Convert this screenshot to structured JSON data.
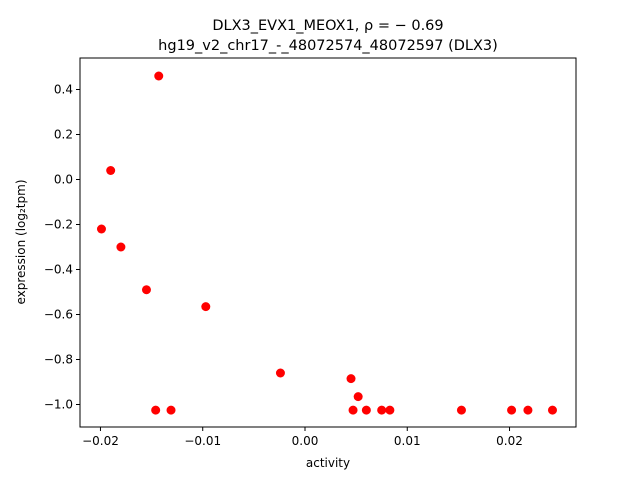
{
  "chart_data": {
    "type": "scatter",
    "title_line1": "DLX3_EVX1_MEOX1, ρ = − 0.69",
    "title_line2": "hg19_v2_chr17_-_48072574_48072597 (DLX3)",
    "xlabel": "activity",
    "ylabel": "expression (log₂tpm)",
    "xlim": [
      -0.022,
      0.0265
    ],
    "ylim": [
      -1.1,
      0.54
    ],
    "xticks": [
      -0.02,
      -0.01,
      0.0,
      0.01,
      0.02
    ],
    "xtick_labels": [
      "−0.02",
      "−0.01",
      "0.00",
      "0.01",
      "0.02"
    ],
    "yticks": [
      -1.0,
      -0.8,
      -0.6,
      -0.4,
      -0.2,
      0.0,
      0.2,
      0.4
    ],
    "ytick_labels": [
      "−1.0",
      "−0.8",
      "−0.6",
      "−0.4",
      "−0.2",
      "0.0",
      "0.2",
      "0.4"
    ],
    "marker_color": "#ff0000",
    "points": [
      {
        "x": -0.0143,
        "y": 0.46
      },
      {
        "x": -0.019,
        "y": 0.04
      },
      {
        "x": -0.0199,
        "y": -0.22
      },
      {
        "x": -0.018,
        "y": -0.3
      },
      {
        "x": -0.0155,
        "y": -0.49
      },
      {
        "x": -0.0097,
        "y": -0.565
      },
      {
        "x": -0.0024,
        "y": -0.86
      },
      {
        "x": 0.0045,
        "y": -0.885
      },
      {
        "x": 0.0052,
        "y": -0.965
      },
      {
        "x": -0.0146,
        "y": -1.025
      },
      {
        "x": -0.0131,
        "y": -1.025
      },
      {
        "x": 0.0047,
        "y": -1.025
      },
      {
        "x": 0.006,
        "y": -1.025
      },
      {
        "x": 0.0075,
        "y": -1.025
      },
      {
        "x": 0.0083,
        "y": -1.025
      },
      {
        "x": 0.0153,
        "y": -1.025
      },
      {
        "x": 0.0202,
        "y": -1.025
      },
      {
        "x": 0.0218,
        "y": -1.025
      },
      {
        "x": 0.0242,
        "y": -1.025
      }
    ]
  }
}
